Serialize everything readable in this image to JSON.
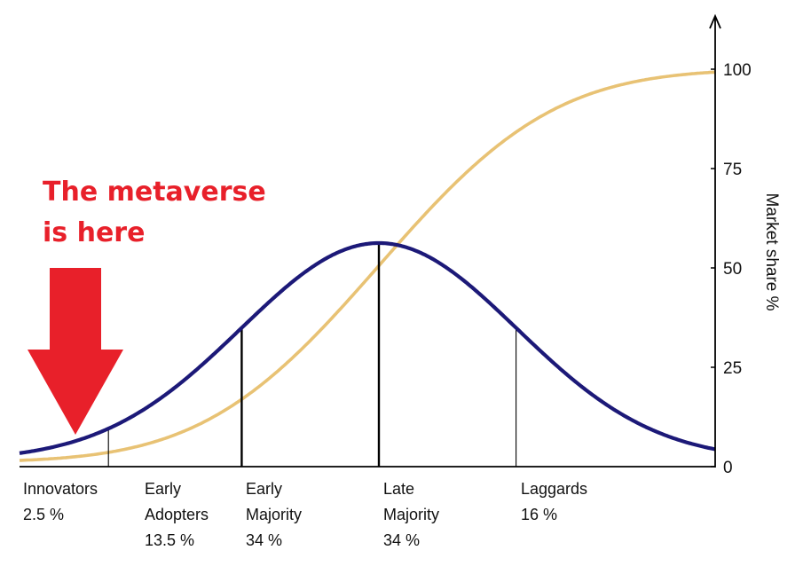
{
  "chart_data": {
    "type": "line",
    "title": "",
    "ylabel": "Market share %",
    "ylim": [
      0,
      100
    ],
    "yticks": [
      "0",
      "25",
      "50",
      "75",
      "100"
    ],
    "grid": false,
    "curves": [
      {
        "kind": "adoption-bell-curve",
        "color": "#1c1978"
      },
      {
        "kind": "cumulative-market-share",
        "color": "#e8c274"
      }
    ],
    "segments": [
      {
        "name": "Innovators",
        "name_line2": "",
        "share": "2.5 %",
        "cum_pct": 2.5
      },
      {
        "name": "Early",
        "name_line2": "Adopters",
        "share": "13.5 %",
        "cum_pct": 16
      },
      {
        "name": "Early",
        "name_line2": "Majority",
        "share": "34 %",
        "cum_pct": 50
      },
      {
        "name": "Late",
        "name_line2": "Majority",
        "share": "34 %",
        "cum_pct": 84
      },
      {
        "name": "Laggards",
        "name_line2": "",
        "share": "16 %",
        "cum_pct": 100
      }
    ],
    "annotation": {
      "line1": "The metaverse",
      "line2": "is here",
      "points_to": "Innovators",
      "color": "#e8202a"
    }
  }
}
